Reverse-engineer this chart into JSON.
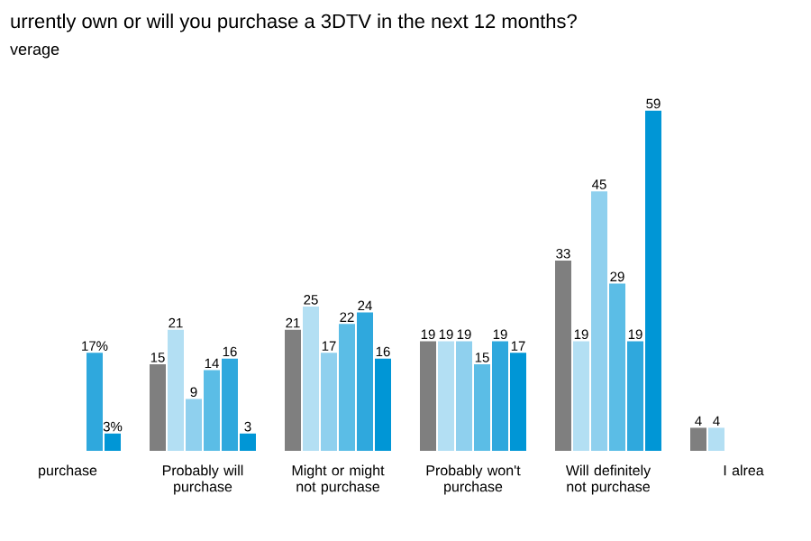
{
  "chart_data": {
    "type": "bar",
    "title": "urrently own or will you purchase a 3DTV in the next 12 months?",
    "subtitle": "verage",
    "categories": [
      "purchase",
      "Probably will purchase",
      "Might or might not purchase",
      "Probably won't purchase",
      "Will definitely not purchase",
      "I alrea"
    ],
    "series": [
      {
        "color": "#7f7f7f",
        "values": [
          null,
          15,
          21,
          19,
          33,
          4
        ],
        "value_labels": [
          null,
          "15",
          "21",
          "19",
          "33",
          "4"
        ]
      },
      {
        "color": "#b3dff3",
        "values": [
          null,
          21,
          25,
          19,
          19,
          4
        ],
        "value_labels": [
          null,
          "21",
          "25",
          "19",
          "19",
          "4"
        ]
      },
      {
        "color": "#8fd0ee",
        "values": [
          null,
          9,
          17,
          19,
          45,
          null
        ],
        "value_labels": [
          null,
          "9",
          "17",
          "19",
          "45",
          null
        ]
      },
      {
        "color": "#5bbde6",
        "values": [
          null,
          14,
          22,
          15,
          29,
          null
        ],
        "value_labels": [
          null,
          "14",
          "22",
          "15",
          "29",
          null
        ]
      },
      {
        "color": "#2fa8dd",
        "values": [
          17,
          16,
          24,
          19,
          19,
          null
        ],
        "value_labels": [
          "17%",
          "16",
          "24",
          "19",
          "19",
          null
        ]
      },
      {
        "color": "#0096d6",
        "values": [
          3,
          3,
          16,
          17,
          59,
          null
        ],
        "value_labels": [
          "3%",
          "3",
          "16",
          "17",
          "59",
          null
        ]
      }
    ],
    "tick_labels": "x",
    "grid": false
  }
}
